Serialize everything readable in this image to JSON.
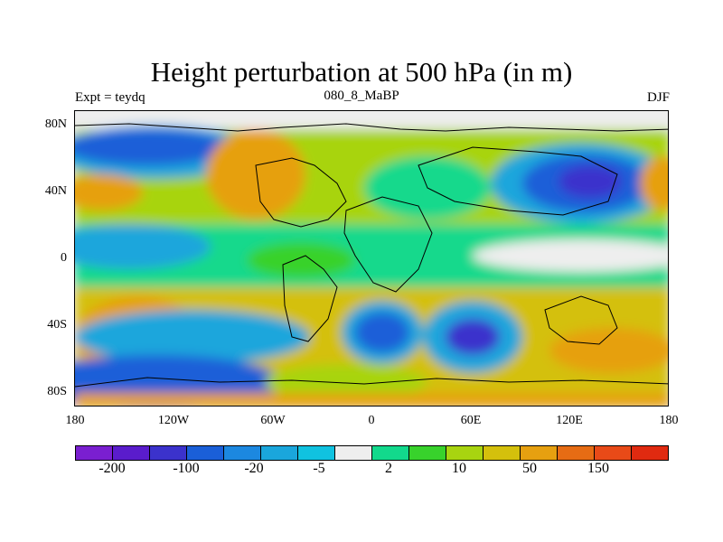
{
  "title": "Height perturbation at 500 hPa (in m)",
  "left_label": "Expt = teydq",
  "center_label": "080_8_MaBP",
  "right_label": "DJF",
  "y_ticks": [
    "80N",
    "40N",
    "0",
    "40S",
    "80S"
  ],
  "x_ticks": [
    "180",
    "120W",
    "60W",
    "0",
    "60E",
    "120E",
    "180"
  ],
  "colorbar": {
    "colors": [
      "#7a1fd0",
      "#5a1ccc",
      "#3b32cc",
      "#1a5fd8",
      "#1c88e0",
      "#1aa6dc",
      "#10c2e0",
      "#eeeeee",
      "#12d98c",
      "#38d22c",
      "#a8d410",
      "#d4c00c",
      "#e6a010",
      "#e66c14",
      "#e84a18",
      "#e02a10"
    ],
    "labels": [
      "-200",
      "-100",
      "-20",
      "-5",
      "2",
      "10",
      "50",
      "150"
    ]
  },
  "legend_colors": {
    "neg_deep": "#3b32cc",
    "neg_mid": "#1a5fd8",
    "neg_light": "#1aa6dc",
    "neutral": "#eeeeee",
    "pos_green": "#38d22c",
    "pos_lime": "#a8d410",
    "pos_yellow": "#d4c00c",
    "pos_orange": "#e6a010"
  }
}
